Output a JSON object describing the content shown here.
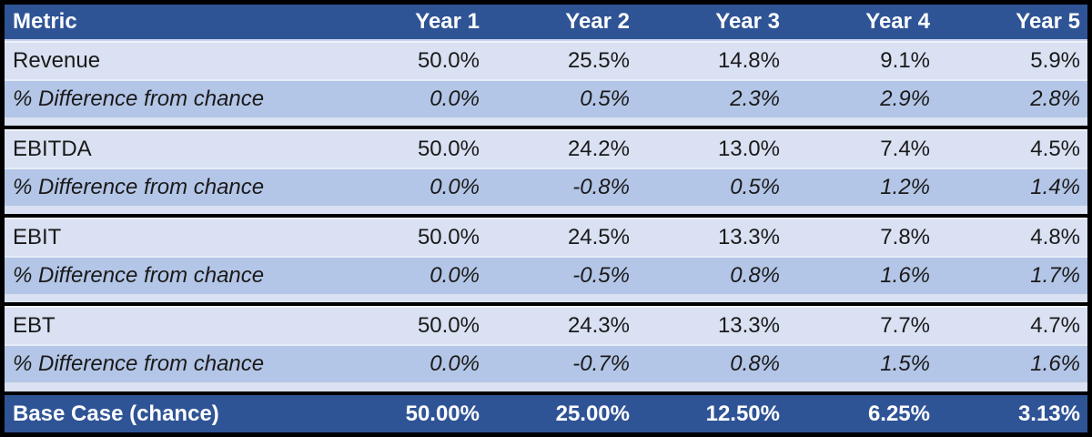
{
  "colors": {
    "frame_border": "#000000",
    "header_bg": "#2F5496",
    "header_text": "#FFFFFF",
    "metric_row_bg": "#D9E1F2",
    "diff_row_bg": "#B4C6E7",
    "footer_bg": "#2F5496",
    "footer_text": "#FFFFFF",
    "body_text": "#1A1A1A"
  },
  "table": {
    "header": {
      "metric": "Metric",
      "years": [
        "Year 1",
        "Year 2",
        "Year 3",
        "Year 4",
        "Year 5"
      ]
    },
    "diff_label": "% Difference from chance",
    "sections": [
      {
        "metric": "Revenue",
        "values": [
          "50.0%",
          "25.5%",
          "14.8%",
          "9.1%",
          "5.9%"
        ],
        "diff": [
          "0.0%",
          "0.5%",
          "2.3%",
          "2.9%",
          "2.8%"
        ]
      },
      {
        "metric": "EBITDA",
        "values": [
          "50.0%",
          "24.2%",
          "13.0%",
          "7.4%",
          "4.5%"
        ],
        "diff": [
          "0.0%",
          "-0.8%",
          "0.5%",
          "1.2%",
          "1.4%"
        ]
      },
      {
        "metric": "EBIT",
        "values": [
          "50.0%",
          "24.5%",
          "13.3%",
          "7.8%",
          "4.8%"
        ],
        "diff": [
          "0.0%",
          "-0.5%",
          "0.8%",
          "1.6%",
          "1.7%"
        ]
      },
      {
        "metric": "EBT",
        "values": [
          "50.0%",
          "24.3%",
          "13.3%",
          "7.7%",
          "4.7%"
        ],
        "diff": [
          "0.0%",
          "-0.7%",
          "0.8%",
          "1.5%",
          "1.6%"
        ]
      }
    ],
    "footer": {
      "label": "Base Case (chance)",
      "values": [
        "50.00%",
        "25.00%",
        "12.50%",
        "6.25%",
        "3.13%"
      ]
    }
  },
  "chart_data": {
    "type": "table",
    "title": "",
    "columns": [
      "Metric",
      "Year 1",
      "Year 2",
      "Year 3",
      "Year 4",
      "Year 5"
    ],
    "rows": [
      {
        "label": "Revenue",
        "values_pct": [
          50.0,
          25.5,
          14.8,
          9.1,
          5.9
        ]
      },
      {
        "label": "% Difference from chance (Revenue)",
        "values_pct": [
          0.0,
          0.5,
          2.3,
          2.9,
          2.8
        ]
      },
      {
        "label": "EBITDA",
        "values_pct": [
          50.0,
          24.2,
          13.0,
          7.4,
          4.5
        ]
      },
      {
        "label": "% Difference from chance (EBITDA)",
        "values_pct": [
          0.0,
          -0.8,
          0.5,
          1.2,
          1.4
        ]
      },
      {
        "label": "EBIT",
        "values_pct": [
          50.0,
          24.5,
          13.3,
          7.8,
          4.8
        ]
      },
      {
        "label": "% Difference from chance (EBIT)",
        "values_pct": [
          0.0,
          -0.5,
          0.8,
          1.6,
          1.7
        ]
      },
      {
        "label": "EBT",
        "values_pct": [
          50.0,
          24.3,
          13.3,
          7.7,
          4.7
        ]
      },
      {
        "label": "% Difference from chance (EBT)",
        "values_pct": [
          0.0,
          -0.7,
          0.8,
          1.5,
          1.6
        ]
      },
      {
        "label": "Base Case (chance)",
        "values_pct": [
          50.0,
          25.0,
          12.5,
          6.25,
          3.13
        ]
      }
    ],
    "layout": {
      "banding": "alternating light/medium blue",
      "section_dividers": "black rules",
      "header_footer": "dark blue, white bold text"
    }
  }
}
